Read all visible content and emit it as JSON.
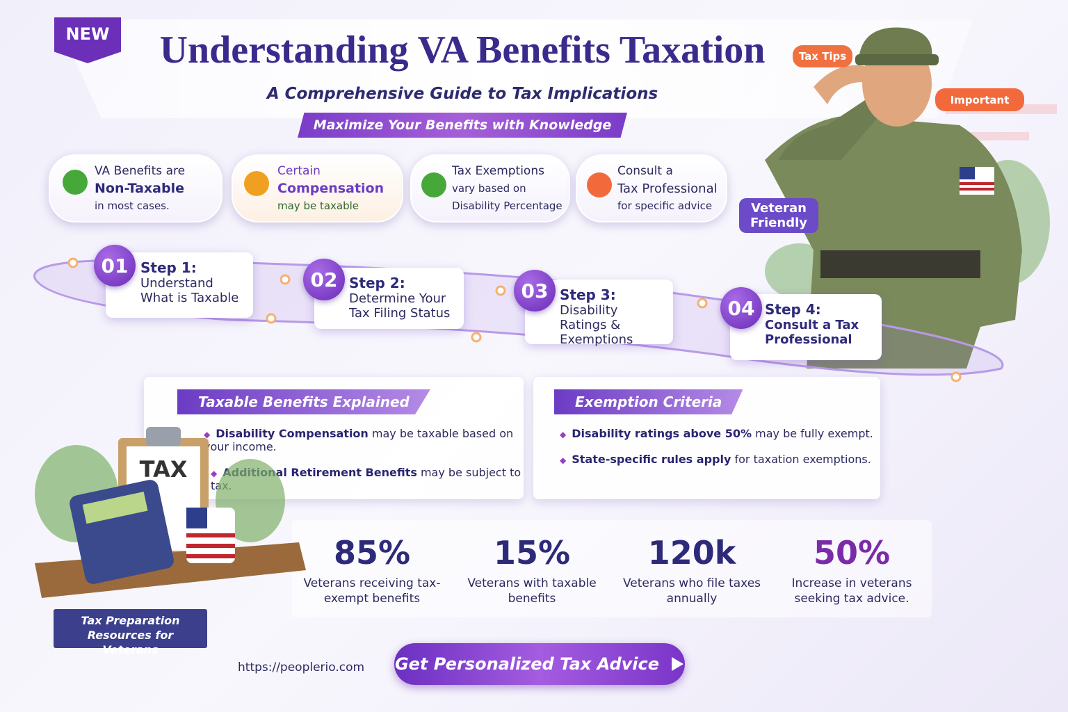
{
  "header": {
    "badge": "NEW",
    "title": "Understanding VA Benefits Taxation",
    "subtitle": "A Comprehensive Guide to Tax Implications",
    "tagline": "Maximize Your Benefits with Knowledge"
  },
  "tags": {
    "tax_tips": "Tax Tips",
    "important": "Important",
    "veteran_friendly": "Veteran Friendly"
  },
  "facts": [
    {
      "lines": [
        "VA Benefits are",
        "Non-Taxable",
        "in most cases."
      ]
    },
    {
      "lines": [
        "Certain",
        "Compensation",
        "may be taxable"
      ]
    },
    {
      "lines": [
        "Tax Exemptions",
        "vary based on",
        "Disability Percentage"
      ]
    },
    {
      "lines": [
        "Consult a",
        "Tax Professional",
        "for specific advice"
      ]
    }
  ],
  "steps": [
    {
      "number": "01",
      "title": "Step 1:",
      "text": "Understand What is Taxable"
    },
    {
      "number": "02",
      "title": "Step 2:",
      "text": "Determine Your Tax Filing Status"
    },
    {
      "number": "03",
      "title": "Step 3:",
      "text": "Disability Ratings & Exemptions"
    },
    {
      "number": "04",
      "title": "Step 4:",
      "text": "Consult a Tax Professional"
    }
  ],
  "panels": [
    {
      "title": "Taxable Benefits Explained",
      "items": [
        {
          "bold": "Disability Compensation",
          "text": "may be taxable based on your income."
        },
        {
          "bold": "Additional Retirement Benefits",
          "text": "may be subject to tax."
        }
      ]
    },
    {
      "title": "Exemption Criteria",
      "items": [
        {
          "bold": "Disability ratings above 50%",
          "text": "may be fully exempt."
        },
        {
          "bold": "State-specific rules apply",
          "text": "for taxation exemptions."
        }
      ]
    }
  ],
  "stats": [
    {
      "value": "85%",
      "label": "Veterans receiving tax-exempt benefits"
    },
    {
      "value": "15%",
      "label": "Veterans with taxable benefits"
    },
    {
      "value": "120k",
      "label": "Veterans who file taxes annually"
    },
    {
      "value": "50%",
      "label": "Increase in veterans seeking tax advice."
    }
  ],
  "illustration": {
    "document_label": "TAX",
    "resources_label": "Tax Preparation Resources for Veterans"
  },
  "footer": {
    "url": "https://peoplerio.com",
    "cta": "Get Personalized Tax Advice"
  }
}
